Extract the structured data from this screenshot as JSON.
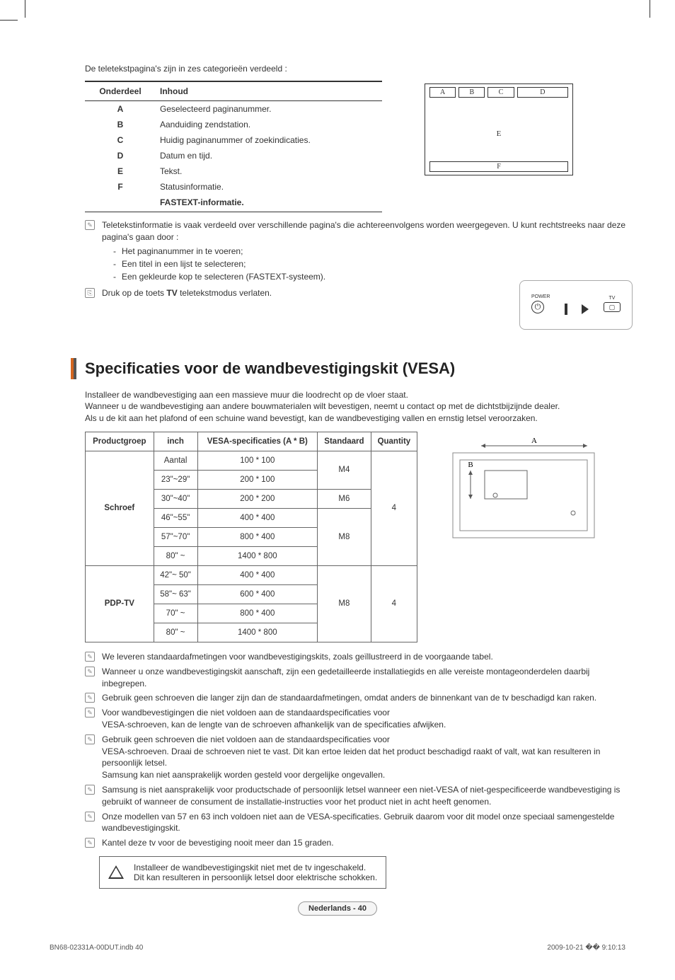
{
  "intro": "De teletekstpagina's zijn in zes categorieën verdeeld :",
  "teletext_table": {
    "headers": [
      "Onderdeel",
      "Inhoud"
    ],
    "rows": [
      [
        "A",
        "Geselecteerd paginanummer."
      ],
      [
        "B",
        "Aanduiding zendstation."
      ],
      [
        "C",
        "Huidig paginanummer of zoekindicaties."
      ],
      [
        "D",
        "Datum en tijd."
      ],
      [
        "E",
        "Tekst."
      ],
      [
        "F",
        "Statusinformatie."
      ]
    ],
    "fastext": "FASTEXT-informatie."
  },
  "diagram_labels": {
    "A": "A",
    "B": "B",
    "C": "C",
    "D": "D",
    "E": "E",
    "F": "F"
  },
  "notes1": {
    "main": "Teletekstinformatie is vaak verdeeld over verschillende pagina's die achtereenvolgens worden weergegeven. U kunt rechtstreeks naar deze pagina's gaan door :",
    "items": [
      "Het paginanummer in te voeren;",
      "Een titel in een lijst te selecteren;",
      "Een gekleurde kop te selecteren (FASTEXT-systeem)."
    ]
  },
  "notes2": {
    "pre": "Druk op de toets ",
    "bold": "TV",
    "post": " teletekstmodus verlaten."
  },
  "remote": {
    "power": "POWER",
    "tv": "TV"
  },
  "section_title": "Specificaties voor de wandbevestigingskit (VESA)",
  "section_intro": [
    "Installeer de wandbevestiging aan een massieve muur die loodrecht op de vloer staat.",
    "Wanneer u de wandbevestiging aan andere bouwmaterialen wilt bevestigen, neemt u contact op met de dichtstbijzijnde dealer.",
    "Als u de kit aan het plafond of een schuine wand bevestigt, kan de wandbevestiging vallen en ernstig letsel veroorzaken."
  ],
  "vesa_table": {
    "headers": [
      "Productgroep",
      "inch",
      "VESA-specificaties (A * B)",
      "Standaard",
      "Quantity"
    ],
    "group1": {
      "name": "Schroef",
      "rows": [
        {
          "inch": "Aantal",
          "spec": "100 * 100",
          "std": "M4",
          "qty": "4"
        },
        {
          "inch": "23\"~29\"",
          "spec": "200 * 100"
        },
        {
          "inch": "30\"~40\"",
          "spec": "200 * 200",
          "std": "M6"
        },
        {
          "inch": "46\"~55\"",
          "spec": "400 * 400",
          "std": "M8"
        },
        {
          "inch": "57\"~70\"",
          "spec": "800 * 400"
        },
        {
          "inch": "80\" ~",
          "spec": "1400 * 800"
        }
      ]
    },
    "group2": {
      "name": "PDP-TV",
      "rows": [
        {
          "inch": "42\"~ 50\"",
          "spec": "400 * 400",
          "std": "M8",
          "qty": "4"
        },
        {
          "inch": "58\"~ 63\"",
          "spec": "600 * 400"
        },
        {
          "inch": "70\" ~",
          "spec": "800 * 400"
        },
        {
          "inch": "80\" ~",
          "spec": "1400 * 800"
        }
      ]
    }
  },
  "vesa_diagram": {
    "A": "A",
    "B": "B"
  },
  "vesa_notes": [
    "We leveren standaardafmetingen voor wandbevestigingskits, zoals geïllustreerd in de voorgaande tabel.",
    "Wanneer u onze wandbevestigingskit aanschaft, zijn een gedetailleerde installatiegids en alle vereiste montageonderdelen daarbij inbegrepen.",
    "Gebruik geen schroeven die langer zijn dan de standaardafmetingen, omdat anders de binnenkant van de tv beschadigd kan raken.",
    "Voor wandbevestigingen die niet voldoen aan de standaardspecificaties voor\nVESA-schroeven, kan de lengte van de schroeven afhankelijk van de specificaties afwijken.",
    "Gebruik geen schroeven die niet voldoen aan de standaardspecificaties voor\nVESA-schroeven. Draai de schroeven niet te vast. Dit kan ertoe leiden dat het product beschadigd raakt of valt, wat kan resulteren in persoonlijk letsel.\nSamsung kan niet aansprakelijk worden gesteld voor dergelijke ongevallen.",
    "Samsung is niet aansprakelijk voor productschade of persoonlijk letsel wanneer een niet-VESA of niet-gespecificeerde wandbevestiging is gebruikt of wanneer de consument de installatie-instructies voor het product niet in acht heeft genomen.",
    "Onze modellen van 57 en 63 inch voldoen niet aan de VESA-specificaties. Gebruik daarom voor dit model onze speciaal samengestelde wandbevestigingskit.",
    "Kantel deze tv voor de bevestiging nooit meer dan 15 graden."
  ],
  "warning": [
    "Installeer de wandbevestigingskit niet met de tv ingeschakeld.",
    "Dit kan resulteren in persoonlijk letsel door elektrische schokken."
  ],
  "page_num": "Nederlands - 40",
  "footer": {
    "left": "BN68-02331A-00DUT.indb   40",
    "right": "2009-10-21   �� 9:10:13"
  }
}
